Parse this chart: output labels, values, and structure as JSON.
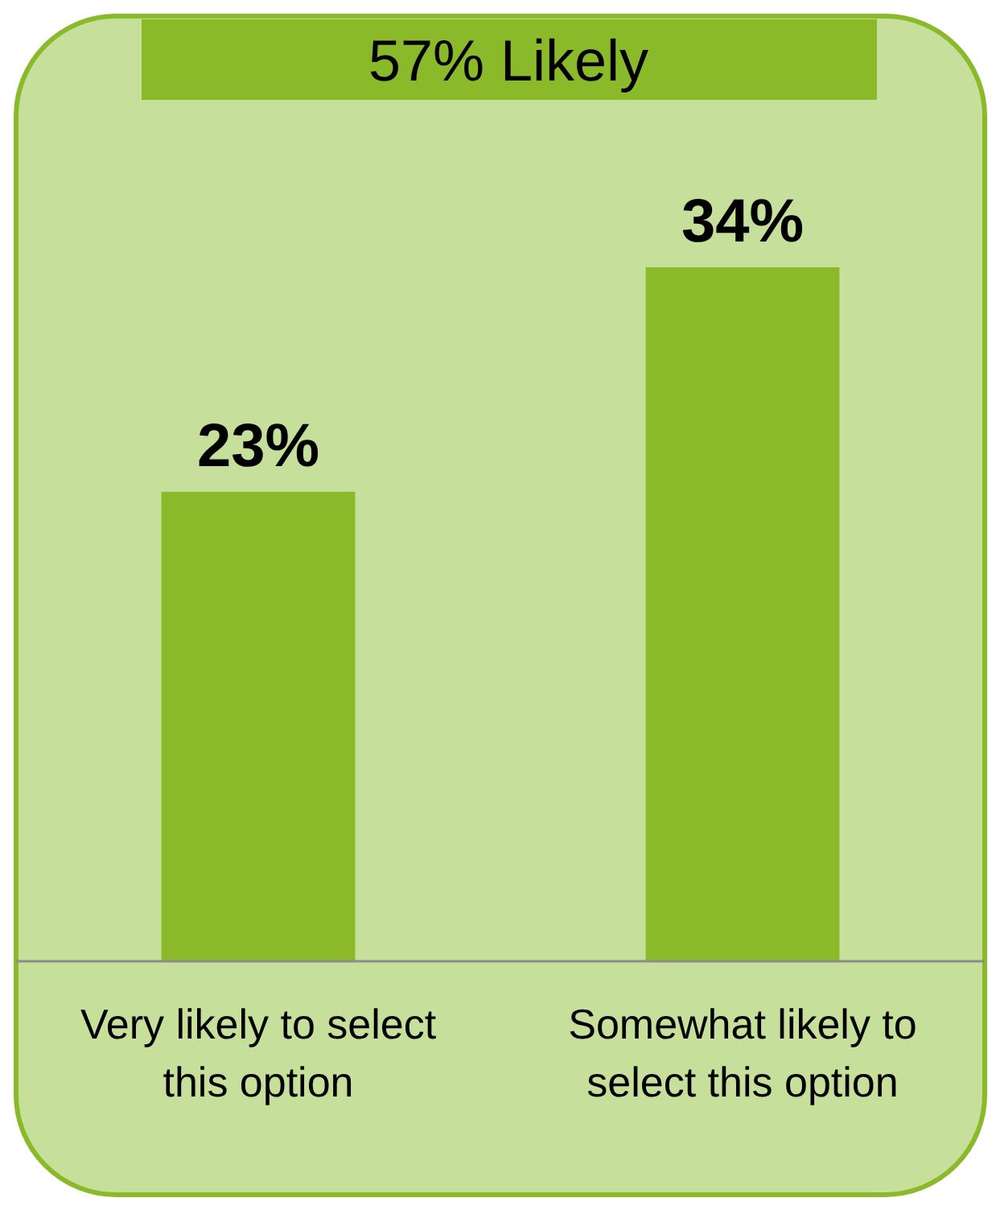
{
  "chart_data": {
    "type": "bar",
    "title": "57% Likely",
    "categories": [
      "Very likely to select this option",
      "Somewhat likely to select this option"
    ],
    "values": [
      23,
      34
    ],
    "value_labels": [
      "23%",
      "34%"
    ],
    "color": "#8aba2a"
  }
}
